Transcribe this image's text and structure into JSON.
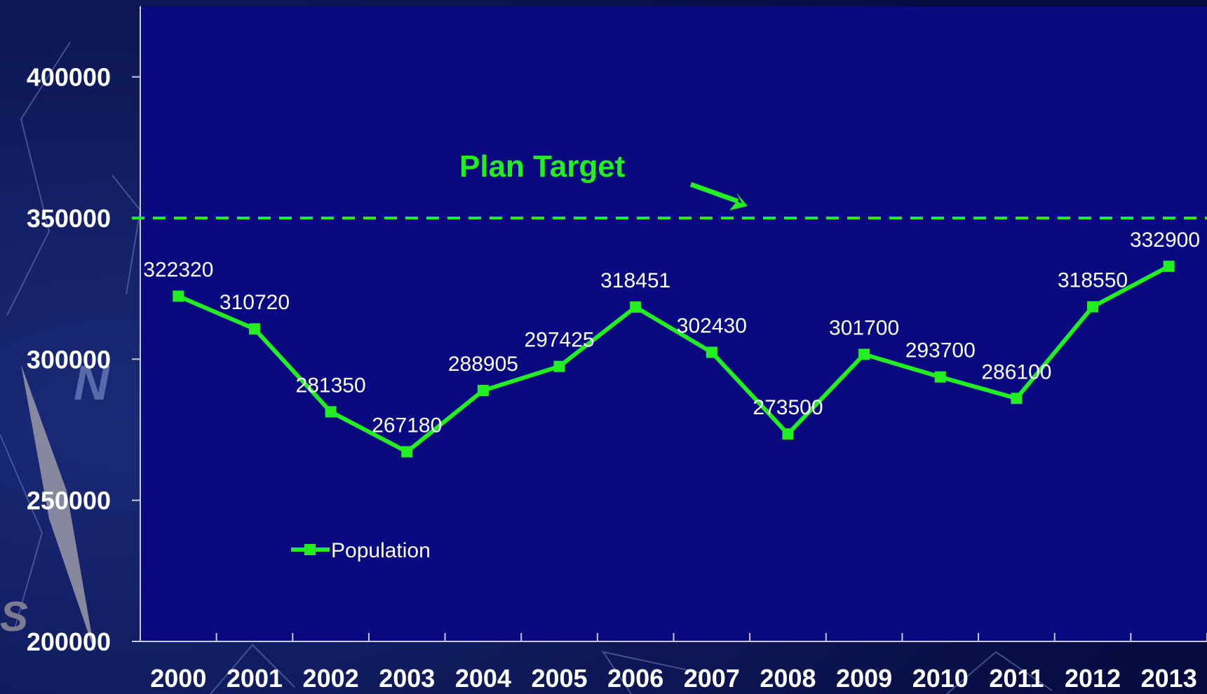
{
  "chart_data": {
    "type": "line",
    "categories": [
      "2000",
      "2001",
      "2002",
      "2003",
      "2004",
      "2005",
      "2006",
      "2007",
      "2008",
      "2009",
      "2010",
      "2011",
      "2012",
      "2013"
    ],
    "series": [
      {
        "name": "Population",
        "color": "#22ee22",
        "values": [
          322320,
          310720,
          281350,
          267180,
          288905,
          297425,
          318451,
          302430,
          273500,
          301700,
          293700,
          286100,
          318550,
          332900
        ]
      }
    ],
    "ylim": [
      200000,
      425000
    ],
    "yticks": [
      200000,
      250000,
      300000,
      350000,
      400000
    ],
    "target": {
      "value": 350000,
      "label": "Plan Target",
      "color": "#22ee22"
    },
    "legend": "lower-left",
    "grid": false
  }
}
